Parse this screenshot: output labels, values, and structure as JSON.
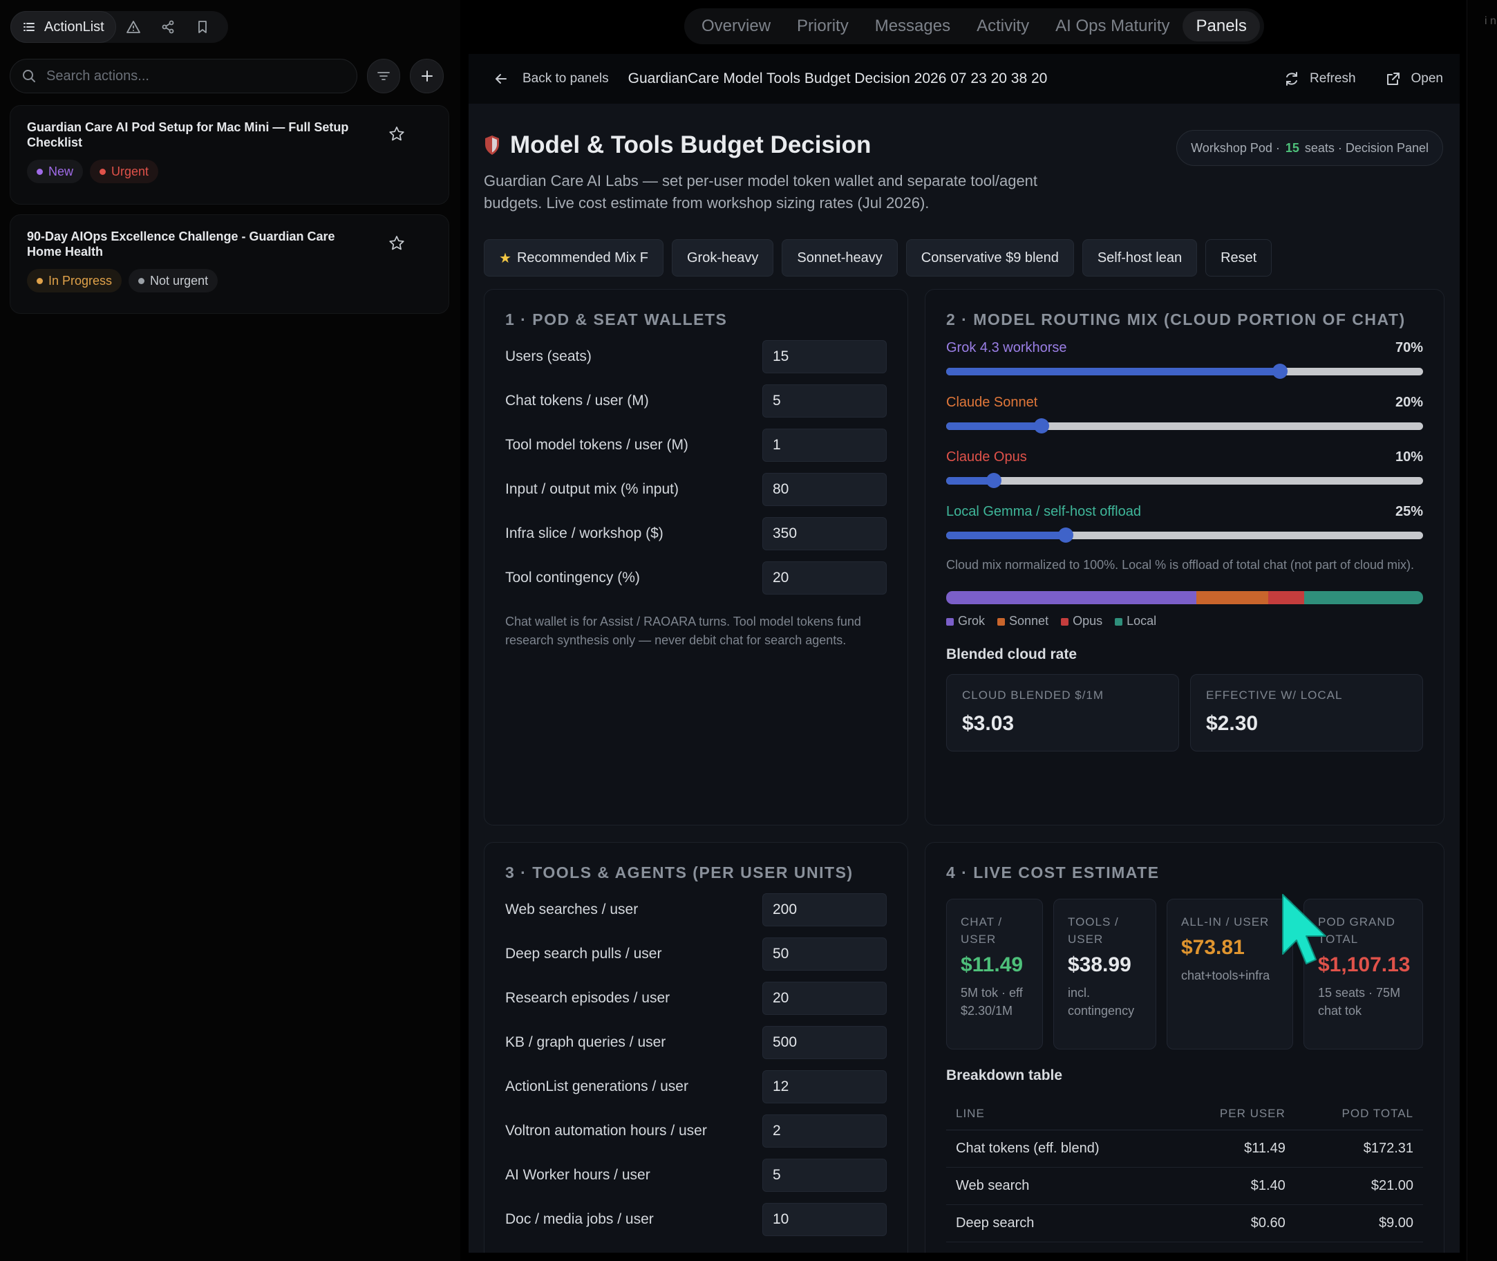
{
  "sidebar": {
    "app_name": "ActionList",
    "search_placeholder": "Search actions...",
    "cards": [
      {
        "title": "Guardian Care AI Pod Setup for Mac Mini — Full Setup Checklist",
        "badges": [
          {
            "label": "New",
            "color": "#a06be8"
          },
          {
            "label": "Urgent",
            "color": "#e0524a"
          }
        ]
      },
      {
        "title": "90-Day AIOps Excellence Challenge - Guardian Care Home Health",
        "badges": [
          {
            "label": "In Progress",
            "color": "#e0a24a"
          },
          {
            "label": "Not urgent",
            "color": "#9aa0a6"
          }
        ]
      }
    ]
  },
  "nav": {
    "tabs": [
      "Overview",
      "Priority",
      "Messages",
      "Activity",
      "AI Ops Maturity",
      "Panels"
    ],
    "active": "Panels"
  },
  "edge_text": "i n",
  "header": {
    "back_label": "Back to panels",
    "panel_name": "GuardianCare Model Tools Budget Decision 2026 07 23 20 38 20",
    "refresh_label": "Refresh",
    "open_label": "Open"
  },
  "page": {
    "title": "Model & Tools Budget Decision",
    "subtitle": "Guardian Care AI Labs — set per-user model token wallet and separate tool/agent budgets. Live cost estimate from workshop sizing rates (Jul 2026).",
    "pod_pill": {
      "prefix": "Workshop Pod ·",
      "seats": "15",
      "suffix": "seats · Decision Panel"
    }
  },
  "presets": [
    "Recommended Mix F",
    "Grok-heavy",
    "Sonnet-heavy",
    "Conservative $9 blend",
    "Self-host lean",
    "Reset"
  ],
  "section1": {
    "title": "1 · POD & SEAT WALLETS",
    "fields": [
      {
        "label": "Users (seats)",
        "value": "15"
      },
      {
        "label": "Chat tokens / user (M)",
        "value": "5"
      },
      {
        "label": "Tool model tokens / user (M)",
        "value": "1"
      },
      {
        "label": "Input / output mix (% input)",
        "value": "80"
      },
      {
        "label": "Infra slice / workshop ($)",
        "value": "350"
      },
      {
        "label": "Tool contingency (%)",
        "value": "20"
      }
    ],
    "note": "Chat wallet is for Assist / RAOARA turns. Tool model tokens fund research synthesis only — never debit chat for search agents."
  },
  "section2": {
    "title": "2 · MODEL ROUTING MIX (CLOUD PORTION OF CHAT)",
    "sliders": [
      {
        "label": "Grok 4.3 workhorse",
        "pct": "70%",
        "value": 70,
        "color": "#9b7fe6"
      },
      {
        "label": "Claude Sonnet",
        "pct": "20%",
        "value": 20,
        "color": "#e0773a"
      },
      {
        "label": "Claude Opus",
        "pct": "10%",
        "value": 10,
        "color": "#e0524a"
      },
      {
        "label": "Local Gemma / self-host offload",
        "pct": "25%",
        "value": 25,
        "color": "#3fb79a"
      }
    ],
    "note": "Cloud mix normalized to 100%. Local % is offload of total chat (not part of cloud mix).",
    "mix_bar": [
      {
        "name": "Grok",
        "share": 52.5,
        "color": "#7b5fc9"
      },
      {
        "name": "Sonnet",
        "share": 15,
        "color": "#c9652c"
      },
      {
        "name": "Opus",
        "share": 7.5,
        "color": "#c43d3d"
      },
      {
        "name": "Local",
        "share": 25,
        "color": "#2f8f7b"
      }
    ],
    "blended_heading": "Blended cloud rate",
    "stats": [
      {
        "label": "CLOUD BLENDED $/1M",
        "value": "$3.03"
      },
      {
        "label": "EFFECTIVE W/ LOCAL",
        "value": "$2.30"
      }
    ]
  },
  "section3": {
    "title": "3 · TOOLS & AGENTS (PER USER UNITS)",
    "fields": [
      {
        "label": "Web searches / user",
        "value": "200"
      },
      {
        "label": "Deep search pulls / user",
        "value": "50"
      },
      {
        "label": "Research episodes / user",
        "value": "20"
      },
      {
        "label": "KB / graph queries / user",
        "value": "500"
      },
      {
        "label": "ActionList generations / user",
        "value": "12"
      },
      {
        "label": "Voltron automation hours / user",
        "value": "2"
      },
      {
        "label": "AI Worker hours / user",
        "value": "5"
      },
      {
        "label": "Doc / media jobs / user",
        "value": "10"
      }
    ]
  },
  "section4": {
    "title": "4 · LIVE COST ESTIMATE",
    "cards": [
      {
        "label": "CHAT / USER",
        "value": "$11.49",
        "sub": "5M tok · eff $2.30/1M",
        "color": "#4ec07a"
      },
      {
        "label": "TOOLS / USER",
        "value": "$38.99",
        "sub": "incl. contingency",
        "color": "#e6e8eb"
      },
      {
        "label": "ALL-IN / USER",
        "value": "$73.81",
        "sub": "chat+tools+infra",
        "color": "#e0952f"
      },
      {
        "label": "POD GRAND TOTAL",
        "value": "$1,107.13",
        "sub": "15 seats · 75M chat tok",
        "color": "#e0524a"
      }
    ],
    "table_heading": "Breakdown table",
    "columns": [
      "LINE",
      "PER USER",
      "POD TOTAL"
    ],
    "rows": [
      {
        "line": "Chat tokens (eff. blend)",
        "per_user": "$11.49",
        "pod_total": "$172.31"
      },
      {
        "line": "Web search",
        "per_user": "$1.40",
        "pod_total": "$21.00"
      },
      {
        "line": "Deep search",
        "per_user": "$0.60",
        "pod_total": "$9.00"
      }
    ]
  },
  "colors": {
    "accent_blue": "#3f63c9",
    "cursor": "#19e3c8"
  }
}
